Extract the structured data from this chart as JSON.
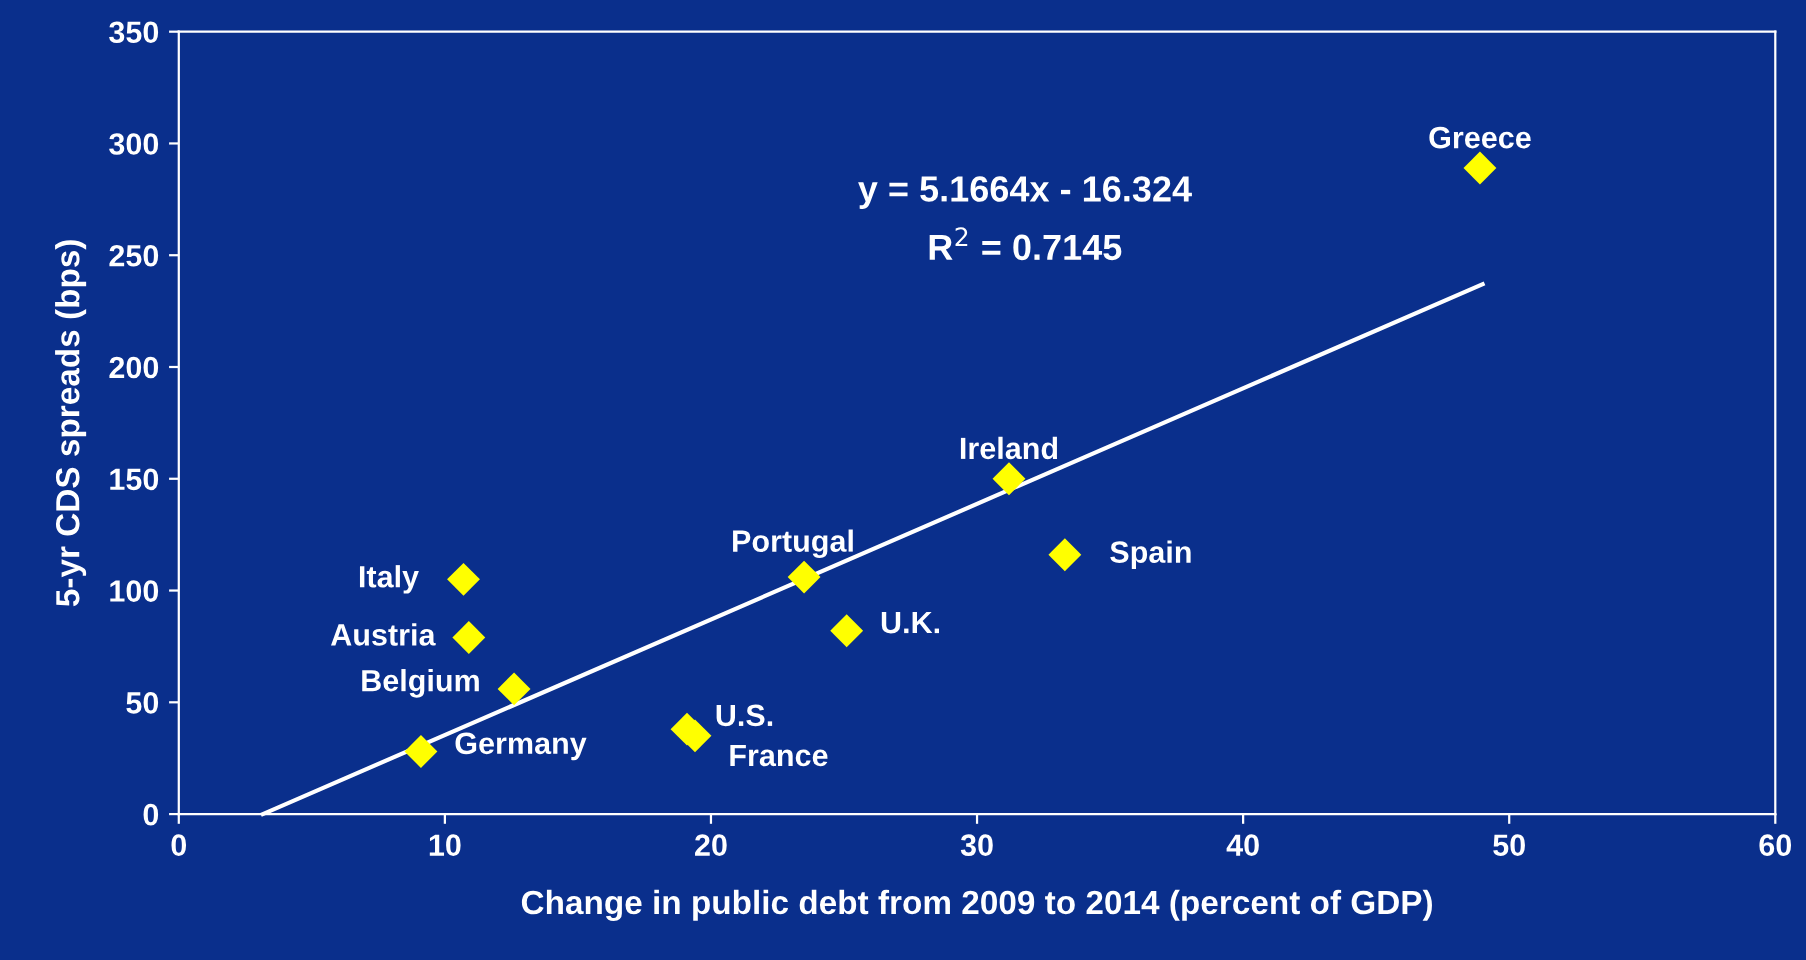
{
  "chart_data": {
    "type": "scatter",
    "xlabel": "Change in public debt from 2009 to 2014 (percent of GDP)",
    "ylabel": "5-yr CDS spreads (bps)",
    "xlim": [
      0,
      60
    ],
    "xticks": [
      0,
      10,
      20,
      30,
      40,
      50,
      60
    ],
    "ylim": [
      0,
      350
    ],
    "yticks": [
      0,
      50,
      100,
      150,
      200,
      250,
      300,
      350
    ],
    "grid": false,
    "legend": false,
    "marker": "diamond",
    "series": [
      {
        "color": "#ffff00",
        "x": [
          48.9,
          31.2,
          33.3,
          23.5,
          25.1,
          10.7,
          10.9,
          12.6,
          9.1,
          19.1,
          19.4
        ],
        "values": [
          289,
          150,
          116,
          106,
          82,
          105,
          79,
          56,
          28,
          38,
          35
        ]
      },
      {
        "type": "line",
        "color": "#ffffff",
        "marker": "none",
        "line_style": "solid",
        "x": [
          3.16,
          49
        ],
        "values": [
          0,
          237
        ]
      }
    ],
    "annotations": [
      {
        "text": "Greece",
        "x": 48.9,
        "y": 289
      },
      {
        "text": "Ireland",
        "x": 31.2,
        "y": 150
      },
      {
        "text": "Spain",
        "x": 33.3,
        "y": 116
      },
      {
        "text": "Portugal",
        "x": 23.5,
        "y": 106
      },
      {
        "text": "U.K.",
        "x": 25.1,
        "y": 82
      },
      {
        "text": "Italy",
        "x": 10.7,
        "y": 105
      },
      {
        "text": "Austria",
        "x": 10.9,
        "y": 79
      },
      {
        "text": "Belgium",
        "x": 12.6,
        "y": 56
      },
      {
        "text": "Germany",
        "x": 9.1,
        "y": 28
      },
      {
        "text": "U.S.",
        "x": 19.1,
        "y": 38
      },
      {
        "text": "France",
        "x": 19.4,
        "y": 35
      },
      "y = 5.1664x - 16.324",
      "R$^{2}$ = 0.7145"
    ]
  }
}
